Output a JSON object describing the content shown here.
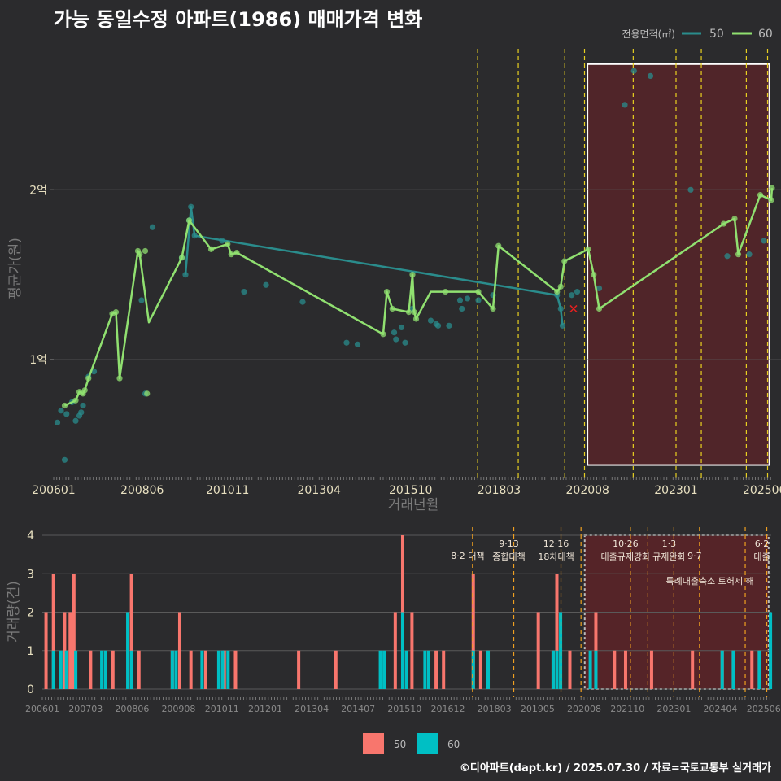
{
  "title": "가능 동일수정 아파트(1986) 매매가격 변화",
  "footer": "©디아파트(dapt.kr) / 2025.07.30 / 자료=국토교통부 실거래가",
  "colors": {
    "background": "#2b2b2d",
    "grid": "#5a5a5a",
    "series50": "#2a8c8c",
    "series60": "#90e070",
    "policy_line": "#e8d020",
    "policy_line_bottom": "#f0a020",
    "highlight_fill": "#5a2428",
    "bar50": "#f8766d",
    "bar60": "#00bfc4",
    "recent_marker": "#e02020"
  },
  "chart_data": [
    {
      "type": "line",
      "title": "가능 동일수정 아파트(1986) 매매가격 변화",
      "xlabel": "거래년월",
      "ylabel": "평균가(원)",
      "xlim": [
        2006.0,
        2025.6
      ],
      "ylim": [
        0.33,
        2.83
      ],
      "y_ticks": [
        {
          "v": 1,
          "label": "1억"
        },
        {
          "v": 2,
          "label": "2억"
        }
      ],
      "x_ticks": [
        {
          "v": 2006.0,
          "label": "200601"
        },
        {
          "v": 2008.4167,
          "label": "200806"
        },
        {
          "v": 2010.75,
          "label": "201011"
        },
        {
          "v": 2013.25,
          "label": "201304"
        },
        {
          "v": 2015.75,
          "label": "201510"
        },
        {
          "v": 2018.1667,
          "label": "201803"
        },
        {
          "v": 2020.5833,
          "label": "202008"
        },
        {
          "v": 2023.0,
          "label": "202301"
        },
        {
          "v": 2025.4167,
          "label": "202506"
        }
      ],
      "legend": {
        "title": "전용면적(㎡)",
        "entries": [
          "50",
          "60"
        ],
        "position": "top-right"
      },
      "policy_dates": [
        2017.58,
        2018.69,
        2019.96,
        2020.5,
        2021.83,
        2023.0,
        2023.69,
        2024.92,
        2025.5
      ],
      "highlight_range": [
        2020.58,
        2025.55
      ],
      "highlight_ylim": [
        0.38,
        2.74
      ],
      "series": [
        {
          "name": "50",
          "points": [
            [
              2006.1,
              0.63
            ],
            [
              2006.2,
              0.7
            ],
            [
              2006.3,
              0.41
            ],
            [
              2006.35,
              0.68
            ],
            [
              2006.5,
              0.75
            ],
            [
              2006.6,
              0.64
            ],
            [
              2006.7,
              0.67
            ],
            [
              2006.75,
              0.69
            ],
            [
              2006.8,
              0.73
            ],
            [
              2006.95,
              0.9
            ],
            [
              2007.1,
              0.93
            ],
            [
              2008.4,
              1.35
            ],
            [
              2008.5,
              0.8
            ],
            [
              2008.7,
              1.78
            ],
            [
              2009.5,
              1.6
            ],
            [
              2009.6,
              1.5
            ],
            [
              2009.7,
              1.82
            ],
            [
              2009.75,
              1.9
            ],
            [
              2009.85,
              1.73
            ],
            [
              2010.6,
              1.7
            ],
            [
              2011.2,
              1.4
            ],
            [
              2011.8,
              1.44
            ],
            [
              2012.8,
              1.34
            ],
            [
              2014.0,
              1.1
            ],
            [
              2014.3,
              1.09
            ],
            [
              2015.3,
              1.16
            ],
            [
              2015.35,
              1.12
            ],
            [
              2015.5,
              1.19
            ],
            [
              2015.6,
              1.1
            ],
            [
              2015.8,
              1.3
            ],
            [
              2016.3,
              1.23
            ],
            [
              2016.45,
              1.21
            ],
            [
              2016.5,
              1.2
            ],
            [
              2016.8,
              1.2
            ],
            [
              2017.1,
              1.35
            ],
            [
              2017.15,
              1.3
            ],
            [
              2017.3,
              1.36
            ],
            [
              2017.6,
              1.35
            ],
            [
              2018.0,
              1.38
            ],
            [
              2019.75,
              1.38
            ],
            [
              2019.85,
              1.3
            ],
            [
              2019.9,
              1.2
            ],
            [
              2020.15,
              1.38
            ],
            [
              2020.3,
              1.4
            ],
            [
              2020.9,
              1.42
            ],
            [
              2021.6,
              2.5
            ],
            [
              2021.85,
              2.7
            ],
            [
              2022.3,
              2.67
            ],
            [
              2023.4,
              2.0
            ],
            [
              2024.4,
              1.61
            ],
            [
              2025.0,
              1.62
            ],
            [
              2025.4,
              1.7
            ]
          ],
          "line": [
            [
              2009.6,
              1.5
            ],
            [
              2009.75,
              1.9
            ],
            [
              2009.85,
              1.73
            ],
            [
              2019.75,
              1.38
            ],
            [
              2019.85,
              1.3
            ],
            [
              2019.9,
              1.2
            ]
          ]
        },
        {
          "name": "60",
          "points": [
            [
              2006.3,
              0.73
            ],
            [
              2006.6,
              0.76
            ],
            [
              2006.7,
              0.81
            ],
            [
              2006.8,
              0.8
            ],
            [
              2006.85,
              0.82
            ],
            [
              2006.95,
              0.89
            ],
            [
              2007.6,
              1.27
            ],
            [
              2007.7,
              1.28
            ],
            [
              2007.8,
              0.89
            ],
            [
              2008.3,
              1.64
            ],
            [
              2008.35,
              1.62
            ],
            [
              2008.5,
              1.64
            ],
            [
              2008.55,
              0.8
            ],
            [
              2009.5,
              1.6
            ],
            [
              2009.7,
              1.82
            ],
            [
              2010.3,
              1.65
            ],
            [
              2010.75,
              1.68
            ],
            [
              2010.85,
              1.62
            ],
            [
              2011.0,
              1.63
            ],
            [
              2015.0,
              1.15
            ],
            [
              2015.1,
              1.4
            ],
            [
              2015.25,
              1.3
            ],
            [
              2015.7,
              1.28
            ],
            [
              2015.8,
              1.5
            ],
            [
              2015.85,
              1.28
            ],
            [
              2015.9,
              1.24
            ],
            [
              2016.7,
              1.4
            ],
            [
              2017.6,
              1.4
            ],
            [
              2018.0,
              1.3
            ],
            [
              2018.15,
              1.67
            ],
            [
              2019.75,
              1.4
            ],
            [
              2019.85,
              1.43
            ],
            [
              2019.95,
              1.58
            ],
            [
              2020.6,
              1.65
            ],
            [
              2020.75,
              1.5
            ],
            [
              2020.9,
              1.3
            ],
            [
              2024.3,
              1.8
            ],
            [
              2024.6,
              1.83
            ],
            [
              2024.7,
              1.62
            ],
            [
              2025.3,
              1.97
            ],
            [
              2025.6,
              1.94
            ],
            [
              2025.62,
              2.01
            ]
          ],
          "line": [
            [
              2006.3,
              0.73
            ],
            [
              2006.6,
              0.76
            ],
            [
              2006.7,
              0.81
            ],
            [
              2006.8,
              0.8
            ],
            [
              2006.85,
              0.82
            ],
            [
              2006.95,
              0.89
            ],
            [
              2007.6,
              1.27
            ],
            [
              2007.7,
              1.28
            ],
            [
              2007.8,
              0.89
            ],
            [
              2008.3,
              1.64
            ],
            [
              2008.35,
              1.62
            ],
            [
              2008.6,
              1.22
            ],
            [
              2009.5,
              1.6
            ],
            [
              2009.7,
              1.82
            ],
            [
              2010.3,
              1.65
            ],
            [
              2010.75,
              1.68
            ],
            [
              2010.85,
              1.62
            ],
            [
              2011.0,
              1.63
            ],
            [
              2015.0,
              1.15
            ],
            [
              2015.1,
              1.4
            ],
            [
              2015.25,
              1.3
            ],
            [
              2015.7,
              1.28
            ],
            [
              2015.8,
              1.5
            ],
            [
              2015.85,
              1.28
            ],
            [
              2015.9,
              1.24
            ],
            [
              2016.3,
              1.4
            ],
            [
              2017.6,
              1.4
            ],
            [
              2018.0,
              1.3
            ],
            [
              2018.15,
              1.67
            ],
            [
              2019.75,
              1.4
            ],
            [
              2019.85,
              1.43
            ],
            [
              2019.95,
              1.58
            ],
            [
              2020.6,
              1.65
            ],
            [
              2020.75,
              1.5
            ],
            [
              2020.9,
              1.3
            ],
            [
              2024.3,
              1.8
            ],
            [
              2024.6,
              1.83
            ],
            [
              2024.7,
              1.62
            ],
            [
              2025.3,
              1.97
            ],
            [
              2025.6,
              1.94
            ],
            [
              2025.62,
              2.01
            ]
          ]
        }
      ],
      "recent_marker": [
        2020.2,
        1.3
      ]
    },
    {
      "type": "bar",
      "title": "",
      "xlabel": "",
      "ylabel": "거래량(건)",
      "ylim": [
        0,
        4
      ],
      "xlim": [
        2006.0,
        2025.62
      ],
      "y_ticks": [
        0,
        1,
        2,
        3,
        4
      ],
      "x_ticks": [
        {
          "v": 2006.0,
          "label": "200601"
        },
        {
          "v": 2007.1667,
          "label": "200703"
        },
        {
          "v": 2008.4167,
          "label": "200806"
        },
        {
          "v": 2009.6667,
          "label": "200908"
        },
        {
          "v": 2010.8333,
          "label": "201011"
        },
        {
          "v": 2012.0,
          "label": "201201"
        },
        {
          "v": 2013.25,
          "label": "201304"
        },
        {
          "v": 2014.5,
          "label": "201407"
        },
        {
          "v": 2015.75,
          "label": "201510"
        },
        {
          "v": 2016.9167,
          "label": "201612"
        },
        {
          "v": 2018.1667,
          "label": "201803"
        },
        {
          "v": 2019.3333,
          "label": "201905"
        },
        {
          "v": 2020.5833,
          "label": "202008"
        },
        {
          "v": 2021.75,
          "label": "202110"
        },
        {
          "v": 2023.0,
          "label": "202301"
        },
        {
          "v": 2024.25,
          "label": "202404"
        },
        {
          "v": 2025.4167,
          "label": "202506"
        }
      ],
      "legend": {
        "entries": [
          "50",
          "60"
        ],
        "position": "bottom"
      },
      "policy_dates": [
        2017.58,
        2018.69,
        2019.96,
        2020.5,
        2021.83,
        2022.3,
        2023.0,
        2023.69,
        2024.92,
        2025.5
      ],
      "policy_events": [
        {
          "date": "8·2 대책",
          "label": "",
          "x": 2017.58,
          "row": 1
        },
        {
          "date": "9·13",
          "label": "종합대책",
          "x": 2018.69,
          "row": 0
        },
        {
          "date": "12·16",
          "label": "18차대책",
          "x": 2019.96,
          "row": 0
        },
        {
          "date": "10·26",
          "label": "대출규제강화",
          "x": 2021.83,
          "row": 0
        },
        {
          "date": "1·3",
          "label": "규제완화",
          "x": 2023.0,
          "row": 0
        },
        {
          "date": "9·7",
          "label": "",
          "x": 2023.69,
          "row": 1
        },
        {
          "date": "",
          "label": "특례대출축소 토허제 해",
          "x": 2024.1,
          "row": 2
        },
        {
          "date": "6·2",
          "label": "대출",
          "x": 2025.5,
          "row": 0
        }
      ],
      "highlight_range": [
        2020.6,
        2025.55
      ],
      "series": [
        {
          "name": "50",
          "bars": [
            [
              2006.1,
              2
            ],
            [
              2006.3,
              3
            ],
            [
              2006.6,
              2
            ],
            [
              2006.75,
              2
            ],
            [
              2006.85,
              3
            ],
            [
              2007.3,
              1
            ],
            [
              2007.9,
              1
            ],
            [
              2008.4,
              3
            ],
            [
              2008.6,
              1
            ],
            [
              2009.5,
              1
            ],
            [
              2009.7,
              2
            ],
            [
              2010.0,
              1
            ],
            [
              2010.4,
              1
            ],
            [
              2010.9,
              1
            ],
            [
              2011.2,
              1
            ],
            [
              2012.9,
              1
            ],
            [
              2013.9,
              1
            ],
            [
              2015.5,
              2
            ],
            [
              2015.7,
              4
            ],
            [
              2015.95,
              2
            ],
            [
              2016.6,
              1
            ],
            [
              2016.8,
              1
            ],
            [
              2017.6,
              3
            ],
            [
              2017.8,
              1
            ],
            [
              2018.0,
              1
            ],
            [
              2019.35,
              2
            ],
            [
              2019.75,
              1
            ],
            [
              2019.85,
              3
            ],
            [
              2020.2,
              1
            ],
            [
              2020.9,
              2
            ],
            [
              2021.4,
              1
            ],
            [
              2021.7,
              1
            ],
            [
              2022.4,
              1
            ],
            [
              2023.5,
              1
            ],
            [
              2024.3,
              1
            ],
            [
              2024.6,
              1
            ],
            [
              2025.1,
              1
            ],
            [
              2025.3,
              1
            ]
          ]
        },
        {
          "name": "60",
          "bars": [
            [
              2006.3,
              1
            ],
            [
              2006.5,
              1
            ],
            [
              2006.65,
              1
            ],
            [
              2006.9,
              1
            ],
            [
              2007.6,
              1
            ],
            [
              2007.7,
              1
            ],
            [
              2008.3,
              2
            ],
            [
              2008.4,
              1
            ],
            [
              2009.5,
              1
            ],
            [
              2009.6,
              1
            ],
            [
              2010.3,
              1
            ],
            [
              2010.75,
              1
            ],
            [
              2010.85,
              1
            ],
            [
              2011.0,
              1
            ],
            [
              2015.1,
              1
            ],
            [
              2015.2,
              1
            ],
            [
              2015.7,
              2
            ],
            [
              2015.8,
              1
            ],
            [
              2016.3,
              1
            ],
            [
              2016.4,
              1
            ],
            [
              2017.6,
              1
            ],
            [
              2018.0,
              1
            ],
            [
              2019.75,
              1
            ],
            [
              2019.85,
              1
            ],
            [
              2019.95,
              2
            ],
            [
              2020.75,
              1
            ],
            [
              2020.9,
              1
            ],
            [
              2024.3,
              1
            ],
            [
              2024.6,
              1
            ],
            [
              2025.3,
              1
            ],
            [
              2025.6,
              2
            ]
          ]
        }
      ]
    }
  ]
}
